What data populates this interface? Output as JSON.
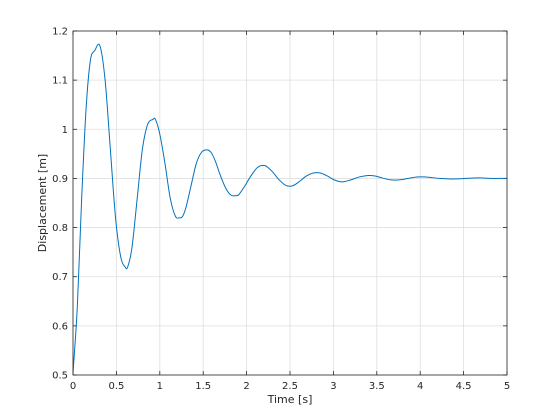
{
  "chart_data": {
    "type": "line",
    "title": "",
    "xlabel": "Time [s]",
    "ylabel": "Displacement [m]",
    "xlim": [
      0,
      5
    ],
    "ylim": [
      0.5,
      1.2
    ],
    "xticks": [
      0,
      0.5,
      1,
      1.5,
      2,
      2.5,
      3,
      3.5,
      4,
      4.5,
      5
    ],
    "xtick_labels": [
      "0",
      "0.5",
      "1",
      "1.5",
      "2",
      "2.5",
      "3",
      "3.5",
      "4",
      "4.5",
      "5"
    ],
    "yticks": [
      0.5,
      0.6,
      0.7,
      0.8,
      0.9,
      1.0,
      1.1,
      1.2
    ],
    "ytick_labels": [
      "0.5",
      "0.6",
      "0.7",
      "0.8",
      "0.9",
      "1",
      "1.1",
      "1.2"
    ],
    "grid": true,
    "legend": "none",
    "series": [
      {
        "color": "#0072BD",
        "x": [
          0,
          0.05,
          0.1,
          0.15,
          0.2,
          0.25,
          0.31,
          0.37,
          0.43,
          0.49,
          0.55,
          0.6,
          0.63,
          0.68,
          0.74,
          0.8,
          0.86,
          0.92,
          0.95,
          1.0,
          1.06,
          1.12,
          1.18,
          1.23,
          1.26,
          1.3,
          1.36,
          1.42,
          1.48,
          1.54,
          1.59,
          1.64,
          1.7,
          1.76,
          1.82,
          1.88,
          1.91,
          1.97,
          2.05,
          2.13,
          2.21,
          2.29,
          2.37,
          2.45,
          2.53,
          2.61,
          2.69,
          2.77,
          2.85,
          2.93,
          3.01,
          3.1,
          3.2,
          3.3,
          3.4,
          3.48,
          3.56,
          3.66,
          3.76,
          3.86,
          3.96,
          4.06,
          4.12,
          4.22,
          4.32,
          4.42,
          4.52,
          4.62,
          4.72,
          4.82,
          4.9,
          5.0
        ],
        "y": [
          0.505,
          0.64,
          0.86,
          1.04,
          1.14,
          1.16,
          1.17,
          1.1,
          0.96,
          0.82,
          0.74,
          0.72,
          0.72,
          0.76,
          0.86,
          0.96,
          1.01,
          1.02,
          1.02,
          0.99,
          0.93,
          0.86,
          0.823,
          0.82,
          0.822,
          0.84,
          0.885,
          0.93,
          0.953,
          0.958,
          0.953,
          0.935,
          0.905,
          0.88,
          0.866,
          0.865,
          0.867,
          0.882,
          0.905,
          0.923,
          0.926,
          0.915,
          0.898,
          0.886,
          0.885,
          0.894,
          0.905,
          0.911,
          0.911,
          0.905,
          0.897,
          0.893,
          0.897,
          0.903,
          0.906,
          0.905,
          0.901,
          0.897,
          0.897,
          0.9,
          0.903,
          0.903,
          0.902,
          0.9,
          0.899,
          0.899,
          0.9,
          0.901,
          0.901,
          0.9,
          0.9,
          0.9
        ]
      }
    ]
  }
}
